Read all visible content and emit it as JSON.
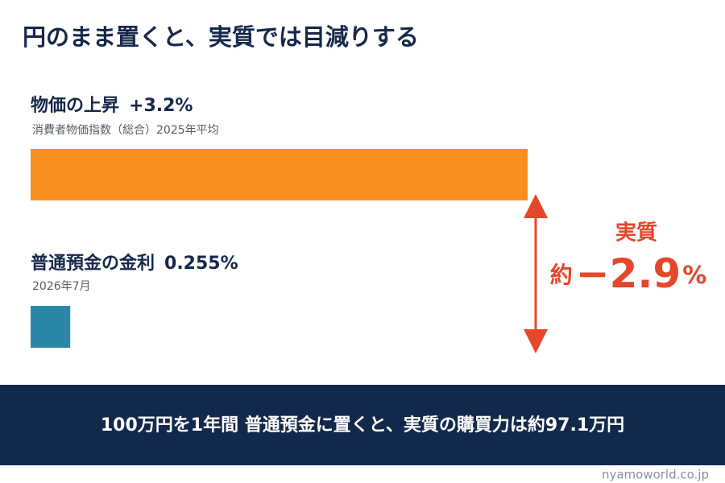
{
  "chart_data": {
    "type": "bar",
    "orientation": "horizontal",
    "title": "円のまま置くと、実質では目減りする",
    "categories": [
      "物価の上昇",
      "普通預金の金利"
    ],
    "notes": [
      "消費者物価指数（総合）2025年平均",
      "2026年7月"
    ],
    "values": [
      3.2,
      0.255
    ],
    "value_labels": [
      "+3.2%",
      "0.255%"
    ],
    "colors": [
      "#f7901e",
      "#2a87a8"
    ],
    "annotation": {
      "title": "実質",
      "prefix": "約",
      "value": "−2.9",
      "unit": "%",
      "color": "#e5472b"
    },
    "footer": "100万円を1年間 普通預金に置くと、実質の購買力は約97.1万円",
    "credit": "nyamoworld.co.jp"
  }
}
